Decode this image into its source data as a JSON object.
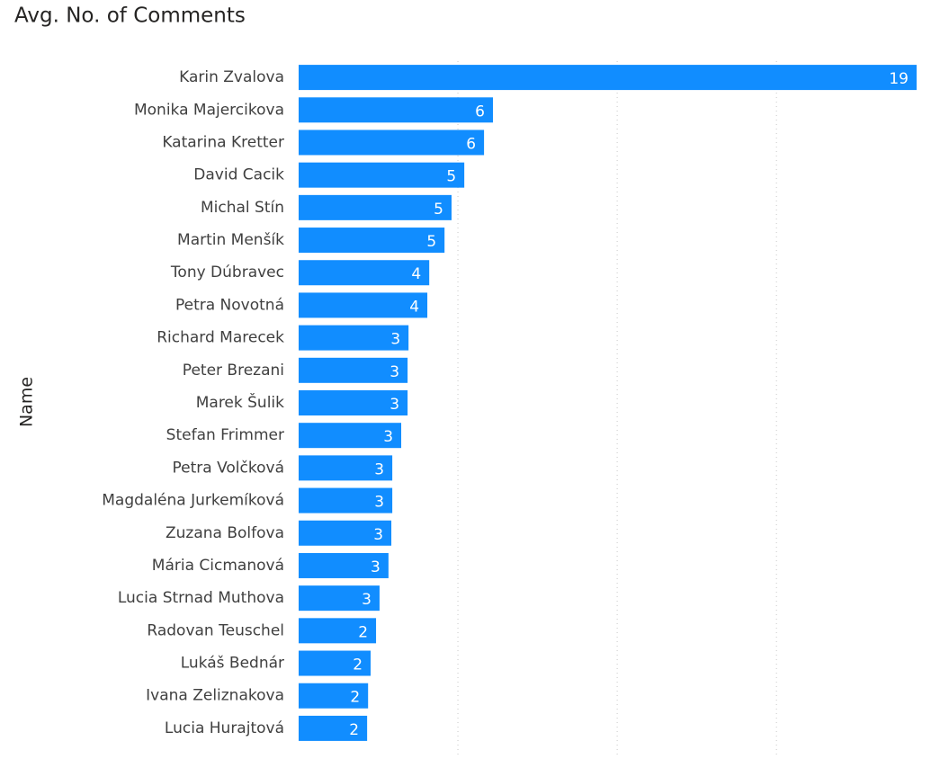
{
  "chart_data": {
    "type": "hbar",
    "title": "Avg. No. of Comments",
    "y_label": "Name",
    "categories": [
      "Karin Zvalova",
      "Monika Majercikova",
      "Katarina Kretter",
      "David Cacik",
      "Michal Stín",
      "Martin Menšík",
      "Tony Dúbravec",
      "Petra Novotná",
      "Richard Marecek",
      "Peter Brezani",
      "Marek Šulik",
      "Stefan Frimmer",
      "Petra Volčková",
      "Magdaléna Jurkemíková",
      "Zuzana Bolfova",
      "Mária Cicmanová",
      "Lucia Strnad Muthova",
      "Radovan Teuschel",
      "Lukáš Bednár",
      "Ivana Zeliznakova",
      "Lucia Hurajtová"
    ],
    "values": [
      19.4,
      6.1,
      5.82,
      5.2,
      4.8,
      4.58,
      4.1,
      4.04,
      3.45,
      3.42,
      3.42,
      3.22,
      2.94,
      2.94,
      2.91,
      2.82,
      2.54,
      2.43,
      2.26,
      2.18,
      2.15
    ],
    "value_labels": [
      "19",
      "6",
      "6",
      "5",
      "5",
      "5",
      "4",
      "4",
      "3",
      "3",
      "3",
      "3",
      "3",
      "3",
      "3",
      "3",
      "3",
      "2",
      "2",
      "2",
      "2"
    ],
    "color": "#118DFF",
    "xlim": [
      0,
      19.4
    ],
    "xticks": [
      5,
      10,
      15
    ],
    "grid": true
  }
}
